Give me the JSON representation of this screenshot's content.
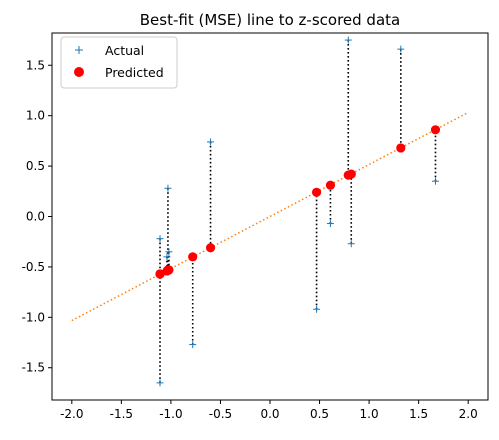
{
  "chart_data": {
    "type": "scatter",
    "title": "Best-fit (MSE) line to z-scored data",
    "xlim": [
      -2.2,
      2.2
    ],
    "ylim": [
      -1.82,
      1.82
    ],
    "xticks": [
      "-2.0",
      "-1.5",
      "-1.0",
      "-0.5",
      "0.0",
      "0.5",
      "1.0",
      "1.5",
      "2.0"
    ],
    "xtick_values": [
      -2.0,
      -1.5,
      -1.0,
      -0.5,
      0.0,
      0.5,
      1.0,
      1.5,
      2.0
    ],
    "yticks": [
      "-1.5",
      "-1.0",
      "-0.5",
      "0.0",
      "0.5",
      "1.0",
      "1.5"
    ],
    "ytick_values": [
      -1.5,
      -1.0,
      -0.5,
      0.0,
      0.5,
      1.0,
      1.5
    ],
    "fit_line": {
      "slope": 0.516,
      "intercept": 0.0,
      "x_range": [
        -2.0,
        2.0
      ],
      "color": "#ff7f0e",
      "style": "dotted"
    },
    "series": [
      {
        "name": "Actual",
        "marker": "+",
        "color": "#1f77b4",
        "x": [
          -1.11,
          -1.11,
          -1.04,
          -1.03,
          -1.02,
          -0.78,
          -0.6,
          0.47,
          0.61,
          0.79,
          0.82,
          1.32,
          1.67
        ],
        "y": [
          -1.65,
          -0.22,
          -0.4,
          0.28,
          -0.35,
          -1.27,
          0.74,
          -0.92,
          -0.07,
          1.75,
          -0.27,
          1.66,
          0.35
        ]
      },
      {
        "name": "Predicted",
        "marker": "o",
        "color": "#ff0000",
        "x": [
          -1.11,
          -1.11,
          -1.04,
          -1.03,
          -1.02,
          -0.78,
          -0.6,
          0.47,
          0.61,
          0.79,
          0.82,
          1.32,
          1.67
        ],
        "y": [
          -0.57,
          -0.57,
          -0.54,
          -0.53,
          -0.53,
          -0.4,
          -0.31,
          0.24,
          0.31,
          0.41,
          0.42,
          0.68,
          0.86
        ]
      }
    ],
    "residual_lines": {
      "color": "#000000",
      "style": "dotted"
    },
    "legend_position": "top-left",
    "grid": false
  }
}
